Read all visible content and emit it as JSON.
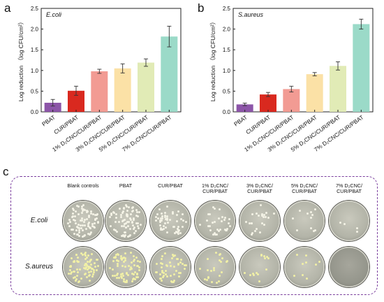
{
  "panel_labels": {
    "a": "a",
    "b": "b",
    "c": "c"
  },
  "chart_data": [
    {
      "type": "bar",
      "title": "E.coli",
      "ylabel": "Log reduction （log CFU/cm²）",
      "ylim": [
        0,
        2.5
      ],
      "yticks": [
        "0.0",
        "0.5",
        "1.0",
        "1.5",
        "2.0",
        "2.5"
      ],
      "categories": [
        "PBAT",
        "CUR/PBAT",
        "1% D₂CNC/CUR/PBAT",
        "3% D₂CNC/CUR/PBAT",
        "5% D₂CNC/CUR/PBAT",
        "7% D₂CNC/CUR/PBAT"
      ],
      "values": [
        0.22,
        0.51,
        0.98,
        1.05,
        1.19,
        1.82
      ],
      "errors": [
        0.08,
        0.11,
        0.05,
        0.11,
        0.09,
        0.25
      ],
      "colors": [
        "#8c55a8",
        "#d9291f",
        "#f29b93",
        "#fbe1a6",
        "#e1ebb6",
        "#9bdac8"
      ]
    },
    {
      "type": "bar",
      "title": "S.aureus",
      "ylabel": "Log reduction （log CFU/cm²）",
      "ylim": [
        0,
        2.5
      ],
      "yticks": [
        "0.0",
        "0.5",
        "1.0",
        "1.5",
        "2.0",
        "2.5"
      ],
      "categories": [
        "PBAT",
        "CUR/PBAT",
        "1% D₂CNC/CUR/PBAT",
        "3% D₂CNC/CUR/PBAT",
        "5% D₂CNC/CUR/PBAT",
        "7% D₂CNC/CUR/PBAT"
      ],
      "values": [
        0.18,
        0.42,
        0.55,
        0.91,
        1.11,
        2.12
      ],
      "errors": [
        0.03,
        0.05,
        0.07,
        0.04,
        0.1,
        0.12
      ],
      "colors": [
        "#8c55a8",
        "#d9291f",
        "#f29b93",
        "#fbe1a6",
        "#e1ebb6",
        "#9bdac8"
      ]
    }
  ],
  "plates": {
    "columns": [
      "Blank controls",
      "PBAT",
      "CUR/PBAT",
      "1% D₂CNC/\nCUR/PBAT",
      "3% D₂CNC/\nCUR/PBAT",
      "5% D₂CNC/\nCUR/PBAT",
      "7% D₂CNC/\nCUR/PBAT"
    ],
    "rows": [
      "E.coli",
      "S.aureus"
    ],
    "colony_density": [
      [
        0.95,
        0.85,
        0.6,
        0.35,
        0.25,
        0.12,
        0.04
      ],
      [
        0.85,
        0.8,
        0.55,
        0.25,
        0.15,
        0.1,
        0.0
      ]
    ]
  }
}
